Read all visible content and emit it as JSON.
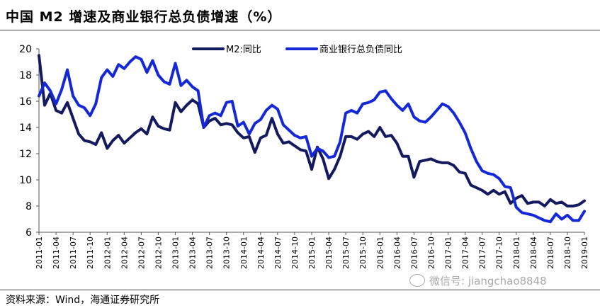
{
  "header": {
    "title": "中国 M2 增速及商业银行总负债增速（%）"
  },
  "footer": {
    "source": "资料来源：Wind，海通证券研究所"
  },
  "watermark": {
    "text": "微信号: jiangchao8848"
  },
  "colors": {
    "m2": "#141a5e",
    "liab": "#1428d8"
  },
  "chart_data": {
    "type": "line",
    "title": "中国 M2 增速及商业银行总负债增速（%）",
    "xlabel": "",
    "ylabel": "",
    "ylim": [
      6,
      20
    ],
    "yticks": [
      6,
      8,
      10,
      12,
      14,
      16,
      18,
      20
    ],
    "grid": false,
    "legend_position": "top",
    "x": [
      "2011-01",
      "2011-02",
      "2011-03",
      "2011-04",
      "2011-05",
      "2011-06",
      "2011-07",
      "2011-08",
      "2011-09",
      "2011-10",
      "2011-11",
      "2011-12",
      "2012-01",
      "2012-02",
      "2012-03",
      "2012-04",
      "2012-05",
      "2012-06",
      "2012-07",
      "2012-08",
      "2012-09",
      "2012-10",
      "2012-11",
      "2012-12",
      "2013-01",
      "2013-02",
      "2013-03",
      "2013-04",
      "2013-05",
      "2013-06",
      "2013-07",
      "2013-08",
      "2013-09",
      "2013-10",
      "2013-11",
      "2013-12",
      "2014-01",
      "2014-02",
      "2014-03",
      "2014-04",
      "2014-05",
      "2014-06",
      "2014-07",
      "2014-08",
      "2014-09",
      "2014-10",
      "2014-11",
      "2014-12",
      "2015-01",
      "2015-02",
      "2015-03",
      "2015-04",
      "2015-05",
      "2015-06",
      "2015-07",
      "2015-08",
      "2015-09",
      "2015-10",
      "2015-11",
      "2015-12",
      "2016-01",
      "2016-02",
      "2016-03",
      "2016-04",
      "2016-05",
      "2016-06",
      "2016-07",
      "2016-08",
      "2016-09",
      "2016-10",
      "2016-11",
      "2016-12",
      "2017-01",
      "2017-02",
      "2017-03",
      "2017-04",
      "2017-05",
      "2017-06",
      "2017-07",
      "2017-08",
      "2017-09",
      "2017-10",
      "2017-11",
      "2017-12",
      "2018-01",
      "2018-02",
      "2018-03",
      "2018-04",
      "2018-05",
      "2018-06",
      "2018-07",
      "2018-08",
      "2018-09",
      "2018-10",
      "2018-11",
      "2018-12",
      "2019-01"
    ],
    "x_tick_labels": [
      "2011-01",
      "2011-04",
      "2011-07",
      "2011-10",
      "2012-01",
      "2012-04",
      "2012-07",
      "2012-10",
      "2013-01",
      "2013-04",
      "2013-07",
      "2013-10",
      "2014-01",
      "2014-04",
      "2014-07",
      "2014-10",
      "2015-01",
      "2015-04",
      "2015-07",
      "2015-10",
      "2016-01",
      "2016-04",
      "2016-07",
      "2016-10",
      "2017-01",
      "2017-04",
      "2017-07",
      "2017-10",
      "2018-01",
      "2018-04",
      "2018-07",
      "2018-10",
      "2019-01"
    ],
    "series": [
      {
        "name": "M2:同比",
        "values": [
          19.5,
          15.7,
          16.6,
          15.3,
          15.1,
          15.9,
          14.7,
          13.5,
          13.0,
          12.9,
          12.7,
          13.6,
          12.4,
          13.0,
          13.4,
          12.8,
          13.2,
          13.6,
          13.9,
          13.5,
          14.8,
          14.1,
          13.9,
          13.8,
          15.9,
          15.2,
          15.7,
          16.1,
          15.8,
          14.0,
          14.5,
          14.7,
          14.2,
          14.3,
          14.2,
          13.6,
          13.2,
          13.3,
          12.1,
          13.2,
          13.4,
          14.7,
          13.5,
          12.8,
          12.9,
          12.6,
          12.3,
          12.2,
          10.8,
          12.5,
          11.6,
          10.1,
          10.8,
          11.8,
          13.3,
          13.3,
          13.1,
          13.5,
          13.7,
          13.3,
          14.0,
          13.3,
          13.4,
          12.8,
          11.8,
          11.8,
          10.2,
          11.4,
          11.5,
          11.6,
          11.4,
          11.3,
          11.3,
          11.1,
          10.6,
          10.5,
          9.6,
          9.4,
          9.2,
          8.9,
          9.2,
          8.9,
          9.1,
          8.2,
          8.6,
          8.8,
          8.2,
          8.3,
          8.3,
          8.0,
          8.5,
          8.2,
          8.3,
          8.0,
          8.0,
          8.1,
          8.4
        ]
      },
      {
        "name": "商业银行总负债同比",
        "values": [
          16.4,
          17.4,
          16.8,
          15.8,
          16.9,
          18.4,
          16.4,
          15.7,
          15.5,
          14.9,
          15.8,
          17.8,
          18.4,
          17.9,
          18.8,
          18.5,
          19.0,
          19.4,
          19.2,
          18.2,
          19.1,
          18.0,
          17.5,
          17.3,
          18.9,
          17.2,
          17.6,
          17.1,
          16.8,
          14.0,
          14.9,
          15.1,
          14.9,
          15.9,
          16.0,
          14.1,
          14.4,
          13.5,
          14.3,
          14.6,
          15.3,
          15.7,
          15.4,
          14.2,
          13.8,
          13.4,
          13.2,
          13.3,
          11.8,
          12.4,
          12.2,
          11.7,
          11.8,
          12.9,
          15.1,
          15.3,
          15.1,
          15.8,
          15.9,
          16.1,
          16.7,
          16.8,
          16.2,
          15.7,
          15.3,
          15.8,
          14.8,
          14.5,
          14.4,
          14.8,
          15.3,
          15.8,
          15.6,
          15.1,
          14.4,
          13.6,
          12.4,
          11.4,
          10.7,
          10.5,
          10.4,
          10.1,
          9.5,
          9.4,
          7.9,
          7.5,
          7.4,
          7.3,
          7.1,
          6.9,
          6.8,
          7.4,
          7.0,
          7.3,
          6.9,
          6.9,
          7.6
        ]
      }
    ]
  }
}
